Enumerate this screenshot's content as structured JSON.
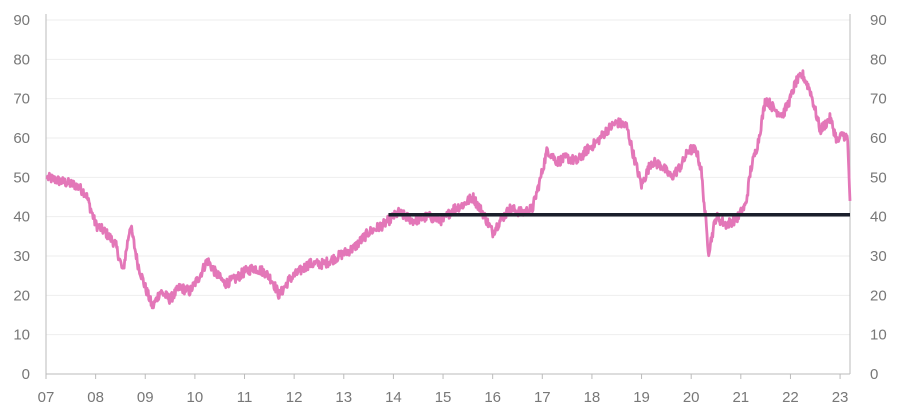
{
  "chart_data": {
    "type": "line",
    "title": "",
    "xlabel": "",
    "ylabel": "",
    "ylim": [
      0,
      90
    ],
    "xlim": [
      2007.0,
      2023.2
    ],
    "y_ticks": [
      0,
      10,
      20,
      30,
      40,
      50,
      60,
      70,
      80,
      90
    ],
    "x_tick_labels": [
      "07",
      "08",
      "09",
      "10",
      "11",
      "12",
      "13",
      "14",
      "15",
      "16",
      "17",
      "18",
      "19",
      "20",
      "21",
      "22",
      "23"
    ],
    "grid": "horizontal",
    "colors": {
      "series": "#e377b8",
      "reference": "#1a1f2b"
    },
    "series": [
      {
        "x": [
          2007.0,
          2007.3,
          2007.6,
          2007.8,
          2008.0,
          2008.2,
          2008.4,
          2008.55,
          2008.7,
          2008.85,
          2009.0,
          2009.15,
          2009.3,
          2009.5,
          2009.7,
          2009.9,
          2010.1,
          2010.25,
          2010.4,
          2010.6,
          2010.8,
          2011.0,
          2011.2,
          2011.4,
          2011.55,
          2011.7,
          2011.9,
          2012.1,
          2012.3,
          2012.6,
          2012.9,
          2013.2,
          2013.5,
          2013.8,
          2014.1,
          2014.4,
          2014.7,
          2015.0,
          2015.2,
          2015.4,
          2015.6,
          2015.8,
          2016.0,
          2016.15,
          2016.35,
          2016.6,
          2016.8,
          2016.95,
          2017.1,
          2017.3,
          2017.5,
          2017.7,
          2017.9,
          2018.1,
          2018.3,
          2018.5,
          2018.7,
          2018.85,
          2019.0,
          2019.2,
          2019.4,
          2019.6,
          2019.8,
          2019.95,
          2020.1,
          2020.2,
          2020.35,
          2020.5,
          2020.7,
          2020.85,
          2020.95,
          2021.1,
          2021.2,
          2021.35,
          2021.5,
          2021.7,
          2021.85,
          2022.0,
          2022.1,
          2022.25,
          2022.4,
          2022.6,
          2022.8,
          2022.95,
          2023.05,
          2023.15,
          2023.2
        ],
        "values": [
          50,
          49,
          48,
          46,
          38,
          36,
          33,
          26,
          38,
          28,
          22,
          17,
          21,
          19,
          22,
          21,
          25,
          29,
          26,
          23,
          24,
          26,
          27,
          26,
          24,
          20,
          24,
          26,
          28,
          28,
          30,
          32,
          36,
          38,
          41,
          39,
          40,
          39,
          42,
          43,
          45,
          41,
          36,
          39,
          42,
          41,
          42,
          49,
          57,
          54,
          55,
          54,
          57,
          59,
          62,
          64,
          63,
          55,
          48,
          54,
          53,
          50,
          53,
          57,
          57,
          52,
          31,
          40,
          38,
          39,
          40,
          43,
          52,
          59,
          70,
          67,
          66,
          70,
          74,
          76,
          72,
          62,
          65,
          59,
          61,
          60,
          44
        ]
      },
      {
        "x": [
          2013.9,
          2023.2
        ],
        "values": [
          40.5,
          40.5
        ]
      }
    ]
  }
}
